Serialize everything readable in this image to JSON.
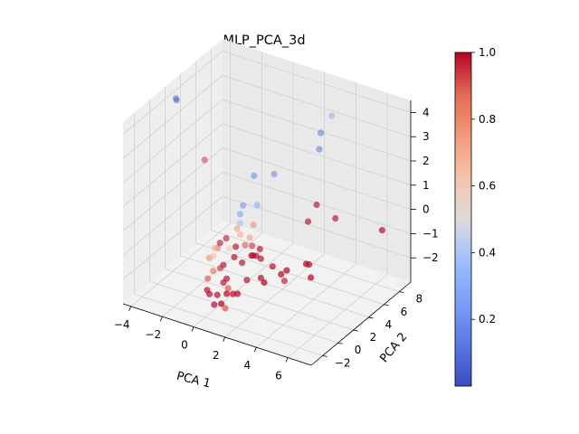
{
  "chart_data": {
    "type": "scatter3d",
    "title": "MLP_PCA_3d",
    "xlabel": "PCA 1",
    "ylabel": "PCA 2",
    "zlabel": "",
    "xlim": [
      -4.5,
      7.5
    ],
    "ylim": [
      -3.5,
      9.5
    ],
    "zlim": [
      -3,
      4.5
    ],
    "x_ticks": [
      -4,
      -2,
      0,
      2,
      4,
      6
    ],
    "y_ticks": [
      -2,
      0,
      2,
      4,
      6,
      8
    ],
    "z_ticks": [
      -2,
      -1,
      0,
      1,
      2,
      3,
      4
    ],
    "grid": true,
    "colormap": "coolwarm",
    "colorbar": {
      "range": [
        0,
        1
      ],
      "ticks": [
        "0.2",
        "0.4",
        "0.6",
        "0.8",
        "1.0"
      ],
      "tick_values": [
        0.2,
        0.4,
        0.6,
        0.8,
        1.0
      ]
    },
    "points": [
      {
        "x": -4.3,
        "y": 3.0,
        "z": 3.8,
        "c": 0.0
      },
      {
        "x": -4.3,
        "y": 3.1,
        "z": 3.7,
        "c": 0.02
      },
      {
        "x": -3.2,
        "y": 4.5,
        "z": 1.1,
        "c": 1.0
      },
      {
        "x": 3.0,
        "y": 8.4,
        "z": 3.2,
        "c": 0.3
      },
      {
        "x": 2.5,
        "y": 8.0,
        "z": 2.5,
        "c": 0.1
      },
      {
        "x": 2.4,
        "y": 8.0,
        "z": 1.8,
        "c": 0.1
      },
      {
        "x": 0.5,
        "y": 6.0,
        "z": 0.9,
        "c": 0.12
      },
      {
        "x": -0.2,
        "y": 4.8,
        "z": 1.0,
        "c": 0.15
      },
      {
        "x": 0.1,
        "y": 4.6,
        "z": -0.1,
        "c": 0.25
      },
      {
        "x": -0.8,
        "y": 4.6,
        "z": -0.3,
        "c": 0.15
      },
      {
        "x": -0.6,
        "y": 3.8,
        "z": -0.4,
        "c": 0.22
      },
      {
        "x": -0.5,
        "y": 3.6,
        "z": -0.7,
        "c": 0.35
      },
      {
        "x": 0.2,
        "y": 3.9,
        "z": -0.7,
        "c": 0.8
      },
      {
        "x": 3.6,
        "y": 5.2,
        "z": 0.5,
        "c": 1.0
      },
      {
        "x": 3.2,
        "y": 4.9,
        "z": -0.2,
        "c": 1.0
      },
      {
        "x": 4.4,
        "y": 6.0,
        "z": -0.1,
        "c": 1.0
      },
      {
        "x": 6.8,
        "y": 7.2,
        "z": -0.4,
        "c": 1.0
      },
      {
        "x": 4.0,
        "y": 3.4,
        "z": -1.4,
        "c": 1.0
      },
      {
        "x": 4.1,
        "y": 2.8,
        "z": -1.2,
        "c": 1.0
      },
      {
        "x": 3.3,
        "y": 1.9,
        "z": -1.4,
        "c": 1.0
      },
      {
        "x": 3.0,
        "y": 1.8,
        "z": -1.6,
        "c": 1.0
      },
      {
        "x": 2.3,
        "y": 2.1,
        "z": -1.5,
        "c": 1.0
      },
      {
        "x": 4.4,
        "y": 2.8,
        "z": -1.7,
        "c": 1.0
      },
      {
        "x": 3.5,
        "y": 1.2,
        "z": -1.6,
        "c": 0.95
      },
      {
        "x": 1.6,
        "y": 2.0,
        "z": -1.3,
        "c": 1.0
      },
      {
        "x": 1.5,
        "y": 1.6,
        "z": -1.1,
        "c": 1.0
      },
      {
        "x": 1.2,
        "y": 1.8,
        "z": -1.2,
        "c": 1.0
      },
      {
        "x": 1.0,
        "y": 2.0,
        "z": -1.3,
        "c": 1.0
      },
      {
        "x": 0.9,
        "y": 2.3,
        "z": -1.0,
        "c": 0.95
      },
      {
        "x": 1.3,
        "y": 2.5,
        "z": -1.1,
        "c": 1.0
      },
      {
        "x": 0.6,
        "y": 2.6,
        "z": -0.8,
        "c": 0.75
      },
      {
        "x": 0.0,
        "y": 2.6,
        "z": -0.8,
        "c": 0.7
      },
      {
        "x": -0.2,
        "y": 2.6,
        "z": -0.6,
        "c": 0.75
      },
      {
        "x": 0.4,
        "y": 2.4,
        "z": -1.1,
        "c": 0.9
      },
      {
        "x": -0.4,
        "y": 2.0,
        "z": -1.3,
        "c": 0.6
      },
      {
        "x": -0.7,
        "y": 2.2,
        "z": -1.0,
        "c": 1.0
      },
      {
        "x": -1.0,
        "y": 2.0,
        "z": -1.2,
        "c": 1.0
      },
      {
        "x": -1.1,
        "y": 1.9,
        "z": -1.4,
        "c": 0.85
      },
      {
        "x": -1.1,
        "y": 1.5,
        "z": -1.3,
        "c": 0.7
      },
      {
        "x": -1.0,
        "y": 1.1,
        "z": -1.5,
        "c": 0.65
      },
      {
        "x": -1.2,
        "y": 1.0,
        "z": -1.6,
        "c": 0.8
      },
      {
        "x": 0.2,
        "y": 1.6,
        "z": -1.0,
        "c": 1.0
      },
      {
        "x": 0.3,
        "y": 1.2,
        "z": -1.3,
        "c": 1.0
      },
      {
        "x": 0.7,
        "y": 1.4,
        "z": -1.5,
        "c": 1.0
      },
      {
        "x": 1.2,
        "y": 1.0,
        "z": -2.0,
        "c": 1.0
      },
      {
        "x": -0.3,
        "y": 1.0,
        "z": -1.7,
        "c": 1.0
      },
      {
        "x": -0.4,
        "y": 0.8,
        "z": -1.8,
        "c": 0.95
      },
      {
        "x": -0.7,
        "y": 0.5,
        "z": -1.9,
        "c": 0.85
      },
      {
        "x": 0.0,
        "y": 0.4,
        "z": -2.2,
        "c": 1.0
      },
      {
        "x": 0.2,
        "y": 0.4,
        "z": -2.0,
        "c": 1.0
      },
      {
        "x": 0.4,
        "y": 0.2,
        "z": -2.3,
        "c": 0.9
      },
      {
        "x": -0.8,
        "y": 0.0,
        "z": -2.1,
        "c": 0.9
      },
      {
        "x": -0.6,
        "y": -0.5,
        "z": -2.4,
        "c": 1.0
      },
      {
        "x": -0.4,
        "y": -0.6,
        "z": -2.5,
        "c": 1.0
      },
      {
        "x": 0.0,
        "y": -0.4,
        "z": -2.5,
        "c": 1.0
      },
      {
        "x": 0.5,
        "y": -0.2,
        "z": -2.4,
        "c": 1.0
      },
      {
        "x": 0.8,
        "y": 0.0,
        "z": -2.4,
        "c": 1.0
      },
      {
        "x": 1.0,
        "y": 0.2,
        "z": -2.4,
        "c": 1.0
      },
      {
        "x": 0.4,
        "y": -0.7,
        "z": -2.7,
        "c": 1.0
      },
      {
        "x": 0.0,
        "y": -0.8,
        "z": -2.8,
        "c": 1.0
      },
      {
        "x": 0.7,
        "y": -0.8,
        "z": -2.8,
        "c": 0.9
      },
      {
        "x": 2.0,
        "y": 1.2,
        "z": -1.8,
        "c": 1.0
      },
      {
        "x": 2.4,
        "y": 0.8,
        "z": -1.8,
        "c": 1.0
      }
    ]
  }
}
